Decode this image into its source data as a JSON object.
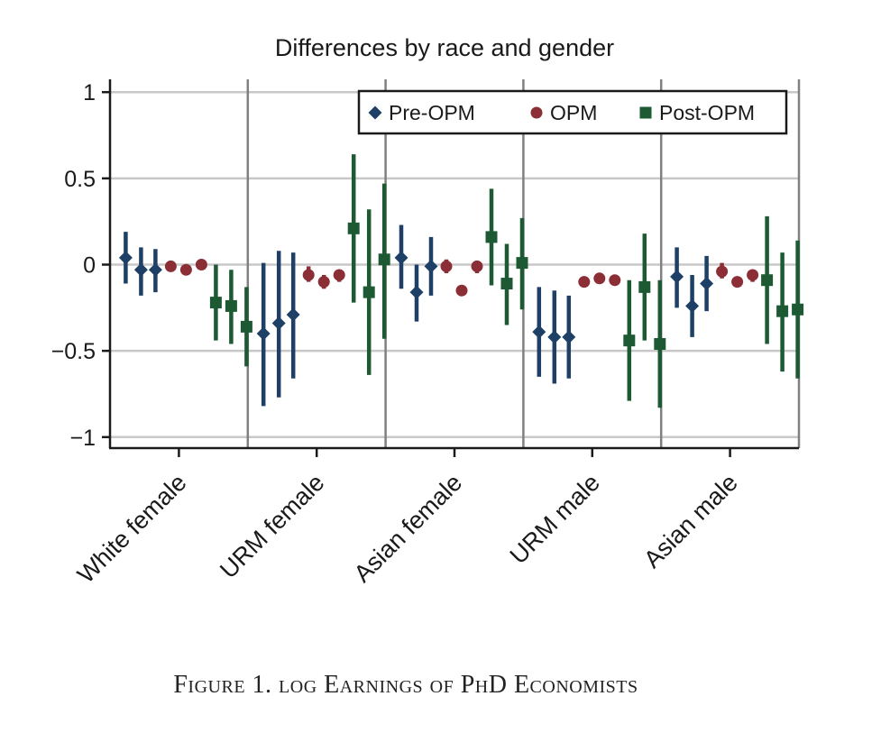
{
  "caption": "Figure 1. log Earnings of PhD Economists",
  "chart_data": {
    "type": "scatter",
    "title": "Differences by race and gender",
    "ylim": [
      -1.05,
      1.03
    ],
    "yticks": [
      1,
      0.5,
      0,
      -0.5,
      -1
    ],
    "ytick_labels": [
      "1",
      "0.5",
      "0",
      "−0.5",
      "−1"
    ],
    "grid": true,
    "legend_position": "top-right",
    "categories": [
      "White female",
      "URM female",
      "Asian female",
      "URM male",
      "Asian male"
    ],
    "colors": {
      "Pre-OPM": "#1e3f66",
      "OPM": "#8b2e35",
      "Post-OPM": "#1d5a34",
      "grid": "#c8c8c8",
      "divider": "#808080"
    },
    "series": [
      {
        "name": "Pre-OPM",
        "marker": "diamond",
        "groups": [
          [
            {
              "y": 0.04,
              "lo": -0.11,
              "hi": 0.19
            },
            {
              "y": -0.03,
              "lo": -0.18,
              "hi": 0.1
            },
            {
              "y": -0.03,
              "lo": -0.16,
              "hi": 0.09
            }
          ],
          [
            {
              "y": -0.4,
              "lo": -0.82,
              "hi": 0.01
            },
            {
              "y": -0.34,
              "lo": -0.77,
              "hi": 0.08
            },
            {
              "y": -0.29,
              "lo": -0.66,
              "hi": 0.07
            }
          ],
          [
            {
              "y": 0.04,
              "lo": -0.14,
              "hi": 0.23
            },
            {
              "y": -0.16,
              "lo": -0.33,
              "hi": 0.0
            },
            {
              "y": -0.01,
              "lo": -0.18,
              "hi": 0.16
            }
          ],
          [
            {
              "y": -0.39,
              "lo": -0.65,
              "hi": -0.13
            },
            {
              "y": -0.42,
              "lo": -0.69,
              "hi": -0.15
            },
            {
              "y": -0.42,
              "lo": -0.66,
              "hi": -0.18
            }
          ],
          [
            {
              "y": -0.07,
              "lo": -0.25,
              "hi": 0.1
            },
            {
              "y": -0.24,
              "lo": -0.42,
              "hi": -0.06
            },
            {
              "y": -0.11,
              "lo": -0.27,
              "hi": 0.05
            }
          ]
        ]
      },
      {
        "name": "OPM",
        "marker": "circle",
        "groups": [
          [
            {
              "y": -0.01,
              "lo": -0.02,
              "hi": 0.0
            },
            {
              "y": -0.03,
              "lo": -0.04,
              "hi": -0.02
            },
            {
              "y": 0.0,
              "lo": -0.01,
              "hi": 0.01
            }
          ],
          [
            {
              "y": -0.06,
              "lo": -0.1,
              "hi": -0.01
            },
            {
              "y": -0.1,
              "lo": -0.14,
              "hi": -0.06
            },
            {
              "y": -0.06,
              "lo": -0.1,
              "hi": -0.03
            }
          ],
          [
            {
              "y": -0.01,
              "lo": -0.05,
              "hi": 0.03
            },
            {
              "y": -0.15,
              "lo": -0.16,
              "hi": -0.14
            },
            {
              "y": -0.01,
              "lo": -0.05,
              "hi": 0.02
            }
          ],
          [
            {
              "y": -0.1,
              "lo": -0.11,
              "hi": -0.09
            },
            {
              "y": -0.08,
              "lo": -0.09,
              "hi": -0.07
            },
            {
              "y": -0.09,
              "lo": -0.1,
              "hi": -0.08
            }
          ],
          [
            {
              "y": -0.04,
              "lo": -0.08,
              "hi": 0.01
            },
            {
              "y": -0.1,
              "lo": -0.11,
              "hi": -0.09
            },
            {
              "y": -0.06,
              "lo": -0.1,
              "hi": -0.03
            }
          ]
        ]
      },
      {
        "name": "Post-OPM",
        "marker": "square",
        "groups": [
          [
            {
              "y": -0.22,
              "lo": -0.44,
              "hi": 0.0
            },
            {
              "y": -0.24,
              "lo": -0.46,
              "hi": -0.03
            },
            {
              "y": -0.36,
              "lo": -0.59,
              "hi": -0.13
            }
          ],
          [
            {
              "y": 0.21,
              "lo": -0.22,
              "hi": 0.64
            },
            {
              "y": -0.16,
              "lo": -0.64,
              "hi": 0.32
            },
            {
              "y": 0.03,
              "lo": -0.43,
              "hi": 0.47
            }
          ],
          [
            {
              "y": 0.16,
              "lo": -0.12,
              "hi": 0.44
            },
            {
              "y": -0.11,
              "lo": -0.35,
              "hi": 0.12
            },
            {
              "y": 0.01,
              "lo": -0.26,
              "hi": 0.27
            }
          ],
          [
            {
              "y": -0.44,
              "lo": -0.79,
              "hi": -0.09
            },
            {
              "y": -0.13,
              "lo": -0.44,
              "hi": 0.18
            },
            {
              "y": -0.46,
              "lo": -0.83,
              "hi": -0.09
            }
          ],
          [
            {
              "y": -0.09,
              "lo": -0.46,
              "hi": 0.28
            },
            {
              "y": -0.27,
              "lo": -0.62,
              "hi": 0.07
            },
            {
              "y": -0.26,
              "lo": -0.66,
              "hi": 0.14
            }
          ]
        ]
      }
    ]
  }
}
